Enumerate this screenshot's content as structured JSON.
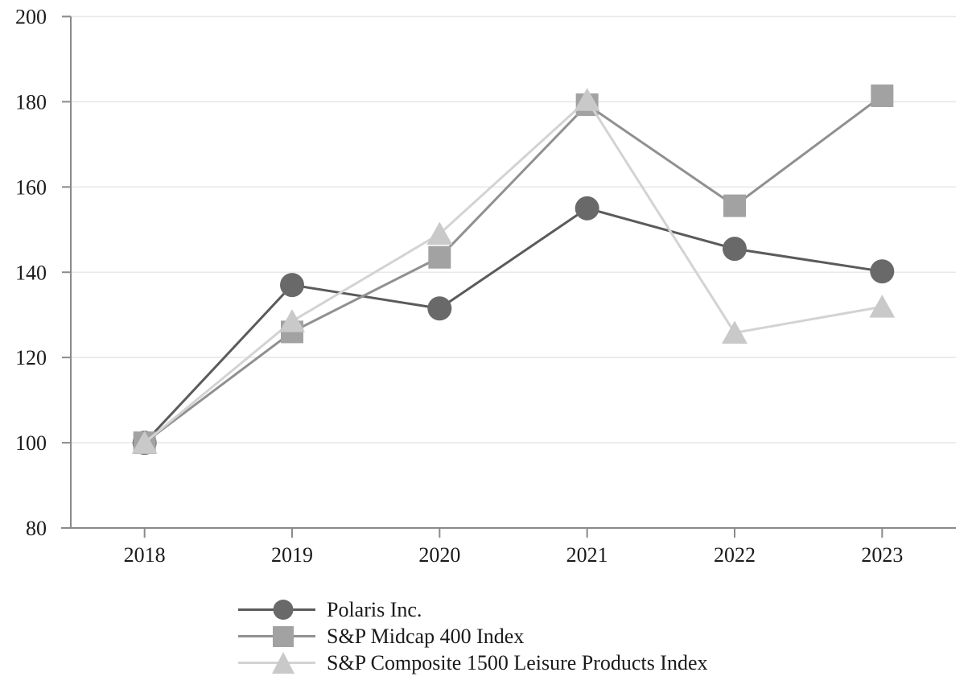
{
  "chart_data": {
    "type": "line",
    "title": "",
    "xlabel": "",
    "ylabel": "",
    "categories": [
      "2018",
      "2019",
      "2020",
      "2021",
      "2022",
      "2023"
    ],
    "series": [
      {
        "name": "Polaris Inc.",
        "marker": "circle",
        "values": [
          100,
          137,
          131.5,
          155,
          145.5,
          140.2
        ],
        "line_color": "#5b5b5b",
        "marker_color": "#696969"
      },
      {
        "name": "S&P Midcap 400 Index",
        "marker": "square",
        "values": [
          100,
          126,
          143.5,
          179.3,
          155.6,
          181.4
        ],
        "line_color": "#909090",
        "marker_color": "#a2a2a2"
      },
      {
        "name": "S&P Composite 1500 Leisure Products Index",
        "marker": "triangle",
        "values": [
          100,
          128.5,
          149,
          180.4,
          125.8,
          131.9
        ],
        "line_color": "#d3d3d3",
        "marker_color": "#c9c9c9"
      }
    ],
    "ylim": [
      80,
      200
    ],
    "yticks": [
      80,
      100,
      120,
      140,
      160,
      180,
      200
    ],
    "grid": "horizontal",
    "legend_position": "bottom-left",
    "axis_color": "#8a8a8a",
    "grid_color": "#e8e8e8",
    "text_color": "#1a1a1a"
  }
}
